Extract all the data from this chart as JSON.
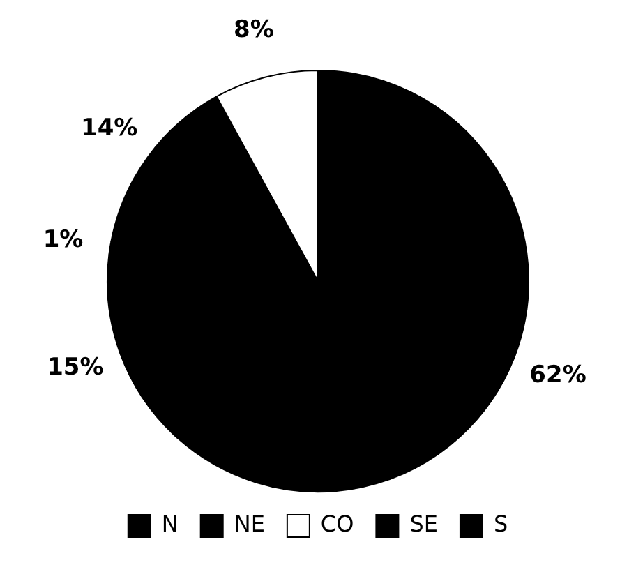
{
  "chart_data": {
    "type": "pie",
    "categories": [
      "N",
      "NE",
      "CO",
      "SE",
      "S"
    ],
    "values": [
      1,
      14,
      8,
      62,
      15
    ],
    "colors": [
      "#000000",
      "#000000",
      "#ffffff",
      "#000000",
      "#000000"
    ],
    "value_labels": [
      "1%",
      "14%",
      "8%",
      "62%",
      "15%"
    ],
    "legend": "bottom"
  }
}
